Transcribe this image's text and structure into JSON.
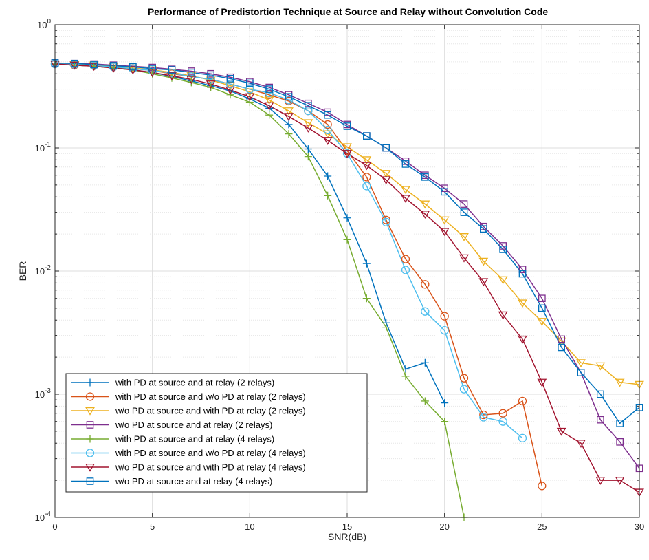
{
  "chart_data": {
    "type": "line",
    "title": "Performance of Predistortion Technique at Source and Relay without Convolution Code",
    "xlabel": "SNR(dB)",
    "ylabel": "BER",
    "xlim": [
      0,
      30
    ],
    "ylim": [
      0.0001,
      1
    ],
    "yscale": "log",
    "grid": true,
    "legend_position": "bottom-left",
    "xticks": [
      "0",
      "5",
      "10",
      "15",
      "20",
      "25",
      "30"
    ],
    "yticks": [
      {
        "base": "10",
        "exp": "0"
      },
      {
        "base": "10",
        "exp": "-1"
      },
      {
        "base": "10",
        "exp": "-2"
      },
      {
        "base": "10",
        "exp": "-3"
      },
      {
        "base": "10",
        "exp": "-4"
      }
    ],
    "series": [
      {
        "name": "with PD at source and at relay (2 relays)",
        "color": "#0072BD",
        "marker": "plus",
        "x": [
          0,
          1,
          2,
          3,
          4,
          5,
          6,
          7,
          8,
          9,
          10,
          11,
          12,
          13,
          14,
          15,
          16,
          17,
          18,
          19,
          20
        ],
        "y": [
          0.48,
          0.47,
          0.46,
          0.45,
          0.43,
          0.41,
          0.38,
          0.35,
          0.32,
          0.29,
          0.25,
          0.21,
          0.155,
          0.098,
          0.059,
          0.027,
          0.0115,
          0.0038,
          0.0016,
          0.0018,
          0.00085
        ]
      },
      {
        "name": "with PD at source and w/o PD at relay (2 relays)",
        "color": "#D95319",
        "marker": "circle",
        "x": [
          0,
          1,
          2,
          3,
          4,
          5,
          6,
          7,
          8,
          9,
          10,
          11,
          12,
          13,
          14,
          15,
          16,
          17,
          18,
          19,
          20,
          21,
          22,
          23,
          24,
          25
        ],
        "y": [
          0.48,
          0.47,
          0.465,
          0.455,
          0.44,
          0.425,
          0.4,
          0.38,
          0.36,
          0.33,
          0.3,
          0.27,
          0.24,
          0.2,
          0.155,
          0.095,
          0.058,
          0.026,
          0.0125,
          0.0078,
          0.0043,
          0.00135,
          0.00068,
          0.0007,
          0.00088,
          0.00018
        ]
      },
      {
        "name": "w/o PD at source and with PD at relay (2 relays)",
        "color": "#EDB120",
        "marker": "triangle-down",
        "x": [
          0,
          1,
          2,
          3,
          4,
          5,
          6,
          7,
          8,
          9,
          10,
          11,
          12,
          13,
          14,
          15,
          16,
          17,
          18,
          19,
          20,
          21,
          22,
          23,
          24,
          25,
          26,
          27,
          28,
          29,
          30
        ],
        "y": [
          0.48,
          0.475,
          0.47,
          0.46,
          0.445,
          0.43,
          0.41,
          0.385,
          0.355,
          0.32,
          0.285,
          0.245,
          0.2,
          0.16,
          0.13,
          0.102,
          0.08,
          0.062,
          0.046,
          0.035,
          0.026,
          0.019,
          0.012,
          0.0085,
          0.0055,
          0.0039,
          0.0027,
          0.0018,
          0.0017,
          0.00125,
          0.0012
        ]
      },
      {
        "name": "w/o PD at source and at relay (2 relays)",
        "color": "#7E2F8E",
        "marker": "square",
        "x": [
          0,
          1,
          2,
          3,
          4,
          5,
          6,
          7,
          8,
          9,
          10,
          11,
          12,
          13,
          14,
          15,
          16,
          17,
          18,
          19,
          20,
          21,
          22,
          23,
          24,
          25,
          26,
          27,
          28,
          29,
          30
        ],
        "y": [
          0.49,
          0.485,
          0.48,
          0.47,
          0.46,
          0.45,
          0.435,
          0.42,
          0.4,
          0.375,
          0.345,
          0.31,
          0.27,
          0.23,
          0.195,
          0.155,
          0.125,
          0.1,
          0.078,
          0.06,
          0.047,
          0.035,
          0.023,
          0.016,
          0.0103,
          0.006,
          0.0028,
          0.0015,
          0.00062,
          0.00041,
          0.00025
        ]
      },
      {
        "name": "with PD at source and at relay (4 relays)",
        "color": "#77AC30",
        "marker": "plus",
        "x": [
          0,
          1,
          2,
          3,
          4,
          5,
          6,
          7,
          8,
          9,
          10,
          11,
          12,
          13,
          14,
          15,
          16,
          17,
          18,
          19,
          20,
          21
        ],
        "y": [
          0.48,
          0.47,
          0.46,
          0.445,
          0.43,
          0.4,
          0.37,
          0.34,
          0.31,
          0.27,
          0.235,
          0.185,
          0.13,
          0.085,
          0.041,
          0.018,
          0.006,
          0.0035,
          0.0014,
          0.00088,
          0.0006,
          0.0001
        ]
      },
      {
        "name": "with PD at source and w/o PD at relay (4 relays)",
        "color": "#4DBEEE",
        "marker": "circle",
        "x": [
          0,
          1,
          2,
          3,
          4,
          5,
          6,
          7,
          8,
          9,
          10,
          11,
          12,
          13,
          14,
          15,
          16,
          17,
          18,
          19,
          20,
          21,
          22,
          23,
          24
        ],
        "y": [
          0.48,
          0.475,
          0.465,
          0.455,
          0.44,
          0.425,
          0.405,
          0.38,
          0.36,
          0.33,
          0.3,
          0.28,
          0.245,
          0.2,
          0.14,
          0.09,
          0.049,
          0.025,
          0.0102,
          0.0047,
          0.0033,
          0.0011,
          0.00065,
          0.0006,
          0.00044
        ]
      },
      {
        "name": "w/o PD at source and with PD at relay (4 relays)",
        "color": "#A2142F",
        "marker": "triangle-down",
        "x": [
          0,
          1,
          2,
          3,
          4,
          5,
          6,
          7,
          8,
          9,
          10,
          11,
          12,
          13,
          14,
          15,
          16,
          17,
          18,
          19,
          20,
          21,
          22,
          23,
          24,
          25,
          26,
          27,
          28,
          29,
          30
        ],
        "y": [
          0.48,
          0.47,
          0.46,
          0.445,
          0.43,
          0.41,
          0.385,
          0.36,
          0.33,
          0.295,
          0.26,
          0.22,
          0.18,
          0.145,
          0.115,
          0.09,
          0.072,
          0.055,
          0.039,
          0.029,
          0.021,
          0.0128,
          0.0082,
          0.0044,
          0.0028,
          0.00125,
          0.0005,
          0.0004,
          0.0002,
          0.0002,
          0.00016
        ]
      },
      {
        "name": "w/o PD at source and at relay (4 relays)",
        "color": "#0072BD",
        "marker": "square",
        "x": [
          0,
          1,
          2,
          3,
          4,
          5,
          6,
          7,
          8,
          9,
          10,
          11,
          12,
          13,
          14,
          15,
          16,
          17,
          18,
          19,
          20,
          21,
          22,
          23,
          24,
          25,
          26,
          27,
          28,
          29,
          30
        ],
        "y": [
          0.49,
          0.485,
          0.475,
          0.465,
          0.455,
          0.44,
          0.43,
          0.41,
          0.39,
          0.365,
          0.335,
          0.3,
          0.26,
          0.22,
          0.185,
          0.15,
          0.125,
          0.1,
          0.074,
          0.058,
          0.044,
          0.03,
          0.022,
          0.015,
          0.0095,
          0.005,
          0.0024,
          0.0015,
          0.001,
          0.00058,
          0.00078
        ]
      }
    ]
  }
}
